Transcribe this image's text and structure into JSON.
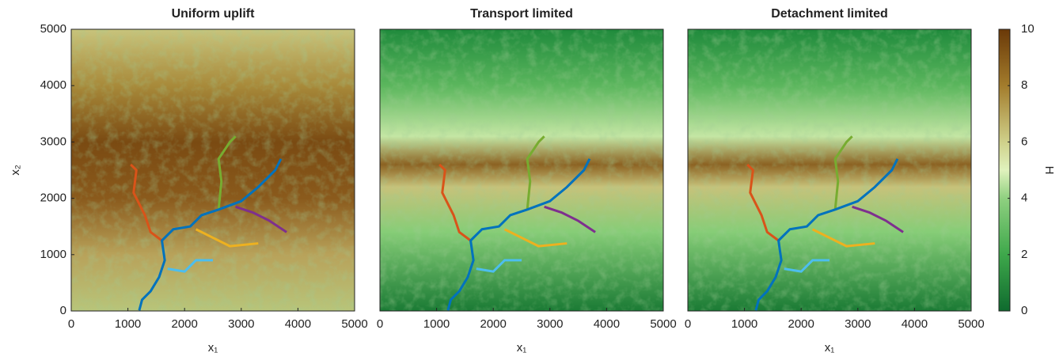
{
  "chart_data": [
    {
      "type": "heatmap",
      "title": "Uniform uplift",
      "xlabel": "x₁",
      "ylabel": "x₂",
      "xlim": [
        0,
        5000
      ],
      "ylim": [
        0,
        5000
      ],
      "xticks": [
        0,
        1000,
        2000,
        3000,
        4000,
        5000
      ],
      "yticks": [
        0,
        1000,
        2000,
        3000,
        4000,
        5000
      ]
    },
    {
      "type": "heatmap",
      "title": "Transport limited",
      "xlabel": "x₁",
      "xlim": [
        0,
        5000
      ],
      "ylim": [
        0,
        5000
      ],
      "xticks": [
        0,
        1000,
        2000,
        3000,
        4000,
        5000
      ]
    },
    {
      "type": "heatmap",
      "title": "Detachment limited",
      "xlabel": "x₁",
      "xlim": [
        0,
        5000
      ],
      "ylim": [
        0,
        5000
      ],
      "xticks": [
        0,
        1000,
        2000,
        3000,
        4000,
        5000
      ]
    }
  ],
  "colorbar": {
    "label": "H",
    "lim": [
      0,
      10
    ],
    "ticks": [
      0,
      2,
      4,
      6,
      8,
      10
    ]
  }
}
